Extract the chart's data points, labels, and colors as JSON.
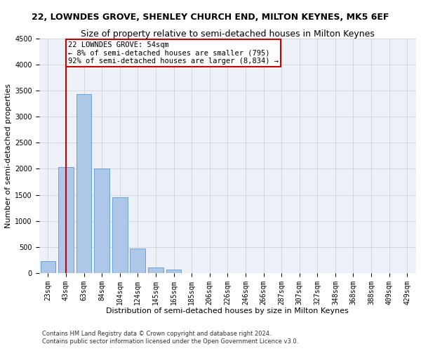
{
  "title": "22, LOWNDES GROVE, SHENLEY CHURCH END, MILTON KEYNES, MK5 6EF",
  "subtitle": "Size of property relative to semi-detached houses in Milton Keynes",
  "xlabel": "Distribution of semi-detached houses by size in Milton Keynes",
  "ylabel": "Number of semi-detached properties",
  "footnote1": "Contains HM Land Registry data © Crown copyright and database right 2024.",
  "footnote2": "Contains public sector information licensed under the Open Government Licence v3.0.",
  "bar_labels": [
    "23sqm",
    "43sqm",
    "63sqm",
    "84sqm",
    "104sqm",
    "124sqm",
    "145sqm",
    "165sqm",
    "185sqm",
    "206sqm",
    "226sqm",
    "246sqm",
    "266sqm",
    "287sqm",
    "307sqm",
    "327sqm",
    "348sqm",
    "368sqm",
    "388sqm",
    "409sqm",
    "429sqm"
  ],
  "bar_values": [
    230,
    2030,
    3430,
    2010,
    1460,
    470,
    110,
    60,
    0,
    0,
    0,
    0,
    0,
    0,
    0,
    0,
    0,
    0,
    0,
    0,
    0
  ],
  "bar_color": "#aec6e8",
  "bar_edge_color": "#5b9bd5",
  "property_line_x": 1.0,
  "property_sqm": 54,
  "pct_smaller": 8,
  "n_smaller": 795,
  "pct_larger": 92,
  "n_larger": 8834,
  "annotation_label": "22 LOWNDES GROVE: 54sqm",
  "annotation_line1": "← 8% of semi-detached houses are smaller (795)",
  "annotation_line2": "92% of semi-detached houses are larger (8,834) →",
  "ylim": [
    0,
    4500
  ],
  "yticks": [
    0,
    500,
    1000,
    1500,
    2000,
    2500,
    3000,
    3500,
    4000,
    4500
  ],
  "grid_color": "#cccccc",
  "bg_color": "#eef2f8",
  "annotation_box_color": "#ffffff",
  "annotation_box_edge": "#cc0000",
  "line_color": "#cc0000",
  "title_fontsize": 9,
  "subtitle_fontsize": 9,
  "axis_label_fontsize": 8,
  "tick_fontsize": 7,
  "annotation_fontsize": 7.5
}
